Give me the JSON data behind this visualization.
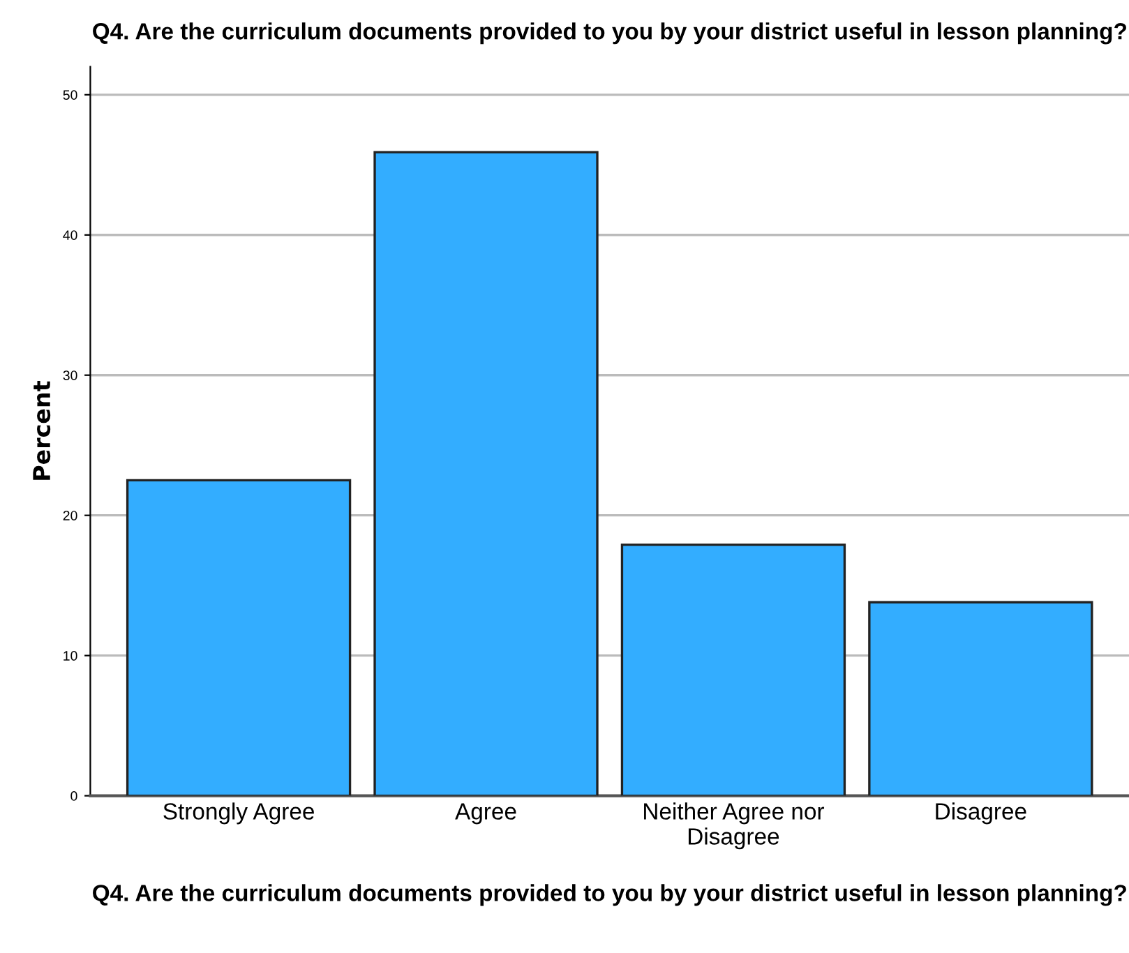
{
  "chart_data": {
    "type": "bar",
    "title": "Q4. Are the curriculum documents provided to you by your district useful in lesson planning?",
    "xlabel": "Q4. Are the curriculum documents provided to you by your district useful in lesson planning?",
    "ylabel": "Percent",
    "categories": [
      "Strongly Agree",
      "Agree",
      "Neither Agree nor\nDisagree",
      "Disagree"
    ],
    "values": [
      22.5,
      45.9,
      17.9,
      13.8
    ],
    "color": "#33adff",
    "ylim": [
      0,
      52
    ],
    "yticks": [
      0,
      10,
      20,
      30,
      40,
      50
    ],
    "grid": "y"
  }
}
